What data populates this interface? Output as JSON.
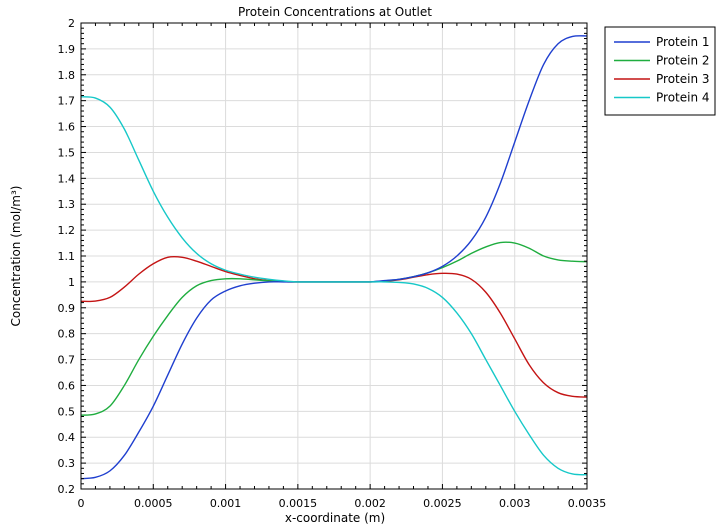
{
  "chart_data": {
    "type": "line",
    "title": "Protein Concentrations at Outlet",
    "xlabel": "x-coordinate (m)",
    "ylabel": "Concentration (mol/m³)",
    "xlim": [
      0,
      0.0035
    ],
    "ylim": [
      0.2,
      2
    ],
    "grid": true,
    "legend_position": "top-right, outside plot",
    "x_ticks": [
      0,
      0.0005,
      0.001,
      0.0015,
      0.002,
      0.0025,
      0.003,
      0.0035
    ],
    "x_tick_labels": [
      "0",
      "0.0005",
      "0.001",
      "0.0015",
      "0.002",
      "0.0025",
      "0.003",
      "0.0035"
    ],
    "y_ticks": [
      0.2,
      0.3,
      0.4,
      0.5,
      0.6,
      0.7,
      0.8,
      0.9,
      1,
      1.1,
      1.2,
      1.3,
      1.4,
      1.5,
      1.6,
      1.7,
      1.8,
      1.9,
      2
    ],
    "y_tick_labels": [
      "0.2",
      "0.3",
      "0.4",
      "0.5",
      "0.6",
      "0.7",
      "0.8",
      "0.9",
      "1",
      "1.1",
      "1.2",
      "1.3",
      "1.4",
      "1.5",
      "1.6",
      "1.7",
      "1.8",
      "1.9",
      "2"
    ],
    "x": [
      0,
      0.0001,
      0.0002,
      0.0003,
      0.0004,
      0.0005,
      0.0006,
      0.0007,
      0.0008,
      0.0009,
      0.001,
      0.0011,
      0.0012,
      0.0013,
      0.0014,
      0.0015,
      0.0016,
      0.0017,
      0.0018,
      0.0019,
      0.002,
      0.0021,
      0.0022,
      0.0023,
      0.0024,
      0.0025,
      0.0026,
      0.0027,
      0.0028,
      0.0029,
      0.003,
      0.0031,
      0.0032,
      0.0033,
      0.0034,
      0.0035
    ],
    "series": [
      {
        "name": "Protein 1",
        "color": "#1f3fcf",
        "values": [
          0.24,
          0.245,
          0.27,
          0.33,
          0.42,
          0.52,
          0.64,
          0.76,
          0.86,
          0.93,
          0.965,
          0.985,
          0.995,
          1.0,
          1.0,
          1.0,
          1.0,
          1.0,
          1.0,
          1.0,
          1.0,
          1.005,
          1.01,
          1.02,
          1.035,
          1.06,
          1.1,
          1.16,
          1.25,
          1.38,
          1.54,
          1.7,
          1.84,
          1.92,
          1.948,
          1.95
        ]
      },
      {
        "name": "Protein 2",
        "color": "#1fad3f",
        "values": [
          0.485,
          0.49,
          0.52,
          0.6,
          0.7,
          0.79,
          0.87,
          0.94,
          0.985,
          1.005,
          1.012,
          1.012,
          1.008,
          1.004,
          1.001,
          1.0,
          1.0,
          1.0,
          1.0,
          1.0,
          1.0,
          1.004,
          1.01,
          1.02,
          1.035,
          1.055,
          1.08,
          1.11,
          1.135,
          1.152,
          1.15,
          1.13,
          1.1,
          1.085,
          1.08,
          1.078
        ]
      },
      {
        "name": "Protein 3",
        "color": "#c41414",
        "values": [
          0.925,
          0.926,
          0.94,
          0.98,
          1.03,
          1.07,
          1.095,
          1.095,
          1.08,
          1.06,
          1.04,
          1.025,
          1.012,
          1.005,
          1.001,
          1.0,
          1.0,
          1.0,
          1.0,
          1.0,
          1.0,
          1.002,
          1.008,
          1.018,
          1.028,
          1.033,
          1.03,
          1.01,
          0.96,
          0.88,
          0.78,
          0.68,
          0.61,
          0.572,
          0.558,
          0.555
        ]
      },
      {
        "name": "Protein 4",
        "color": "#16c8c8",
        "values": [
          1.715,
          1.71,
          1.675,
          1.59,
          1.47,
          1.35,
          1.25,
          1.17,
          1.11,
          1.07,
          1.045,
          1.03,
          1.018,
          1.01,
          1.004,
          1.0,
          1.0,
          1.0,
          1.0,
          1.0,
          1.0,
          1.0,
          0.998,
          0.992,
          0.975,
          0.94,
          0.88,
          0.8,
          0.7,
          0.6,
          0.5,
          0.41,
          0.33,
          0.28,
          0.258,
          0.255
        ]
      }
    ]
  }
}
